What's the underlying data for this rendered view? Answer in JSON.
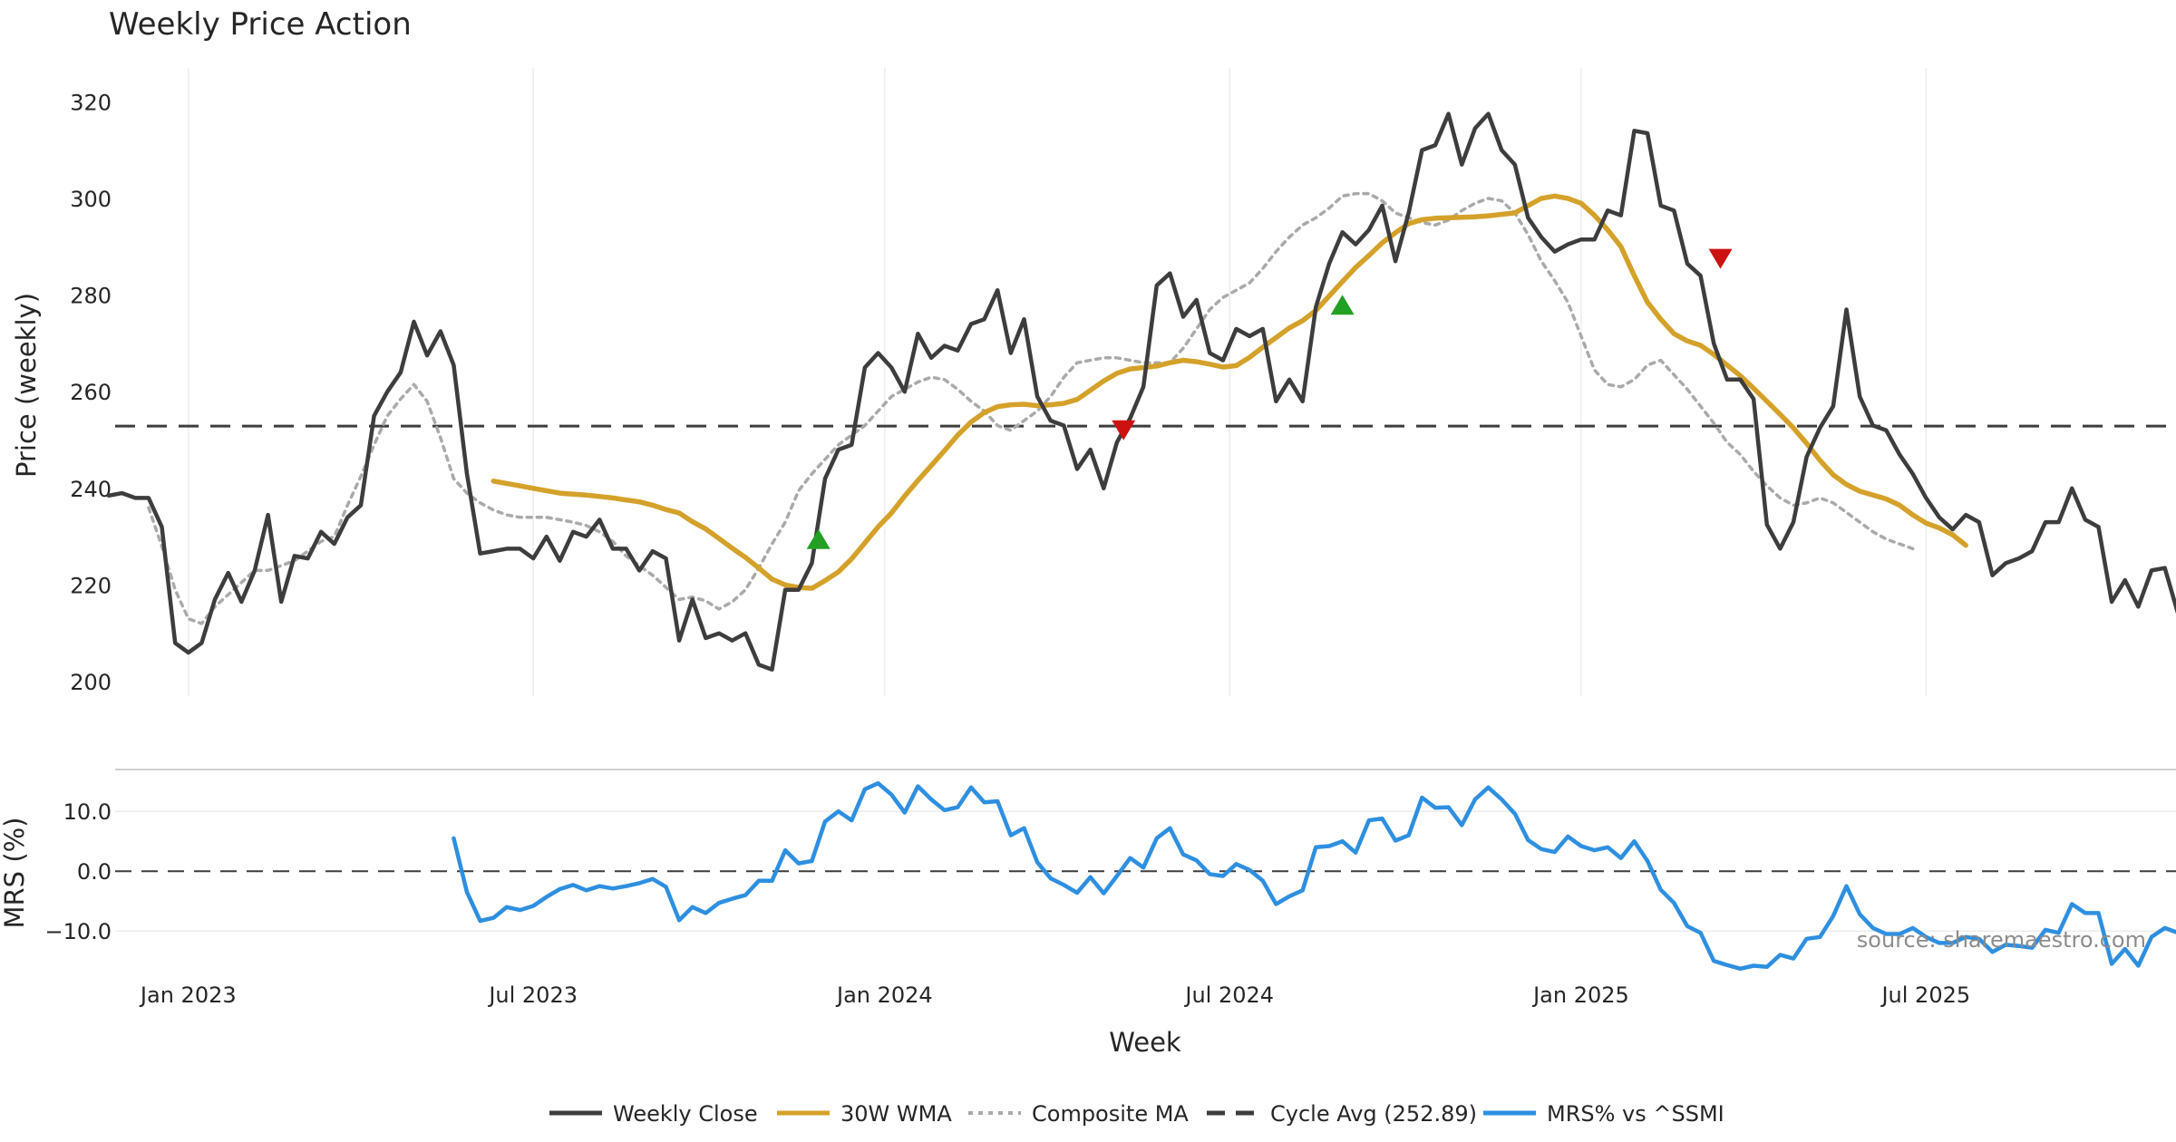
{
  "chart_data": [
    {
      "type": "line",
      "title": "Weekly Price Action",
      "xlabel": "",
      "ylabel": "Price (weekly)",
      "ylim": [
        197,
        327
      ],
      "yticks": [
        200,
        220,
        240,
        260,
        280,
        300,
        320
      ],
      "x_start_week": 0,
      "x_tick_labels": [
        "Jan 2023",
        "Jul 2023",
        "Jan 2024",
        "Jul 2024",
        "Jan 2025",
        "Jul 2025"
      ],
      "x_tick_weeks": [
        6,
        32,
        58.5,
        84.5,
        111,
        137
      ],
      "reference_line": {
        "name": "Cycle Avg (252.89)",
        "value": 252.89
      },
      "series": [
        {
          "name": "Weekly Close",
          "color": "#3d3d3d",
          "start_week": 0,
          "values": [
            238.5,
            239,
            238,
            238,
            232,
            208,
            206,
            208,
            217,
            222.5,
            216.5,
            223,
            234.5,
            216.5,
            226,
            225.5,
            231,
            228.5,
            234,
            236.5,
            255,
            260,
            264,
            274.5,
            267.5,
            272.5,
            265.5,
            243,
            226.5,
            227,
            227.5,
            227.5,
            225.5,
            230,
            225,
            231,
            230,
            233.5,
            227.5,
            227.5,
            223,
            227,
            225.5,
            208.5,
            217,
            209,
            210,
            208.5,
            210,
            203.5,
            202.5,
            219,
            219,
            224.5,
            242,
            248,
            249,
            265,
            268,
            265,
            260,
            272,
            267,
            269.5,
            268.5,
            274,
            275,
            281,
            268,
            275,
            259,
            254,
            253,
            244,
            248,
            240,
            249.5,
            254.5,
            261,
            282,
            284.5,
            275.5,
            279,
            268,
            266.5,
            273,
            271.5,
            273,
            258,
            262.5,
            258,
            277.5,
            286.5,
            293,
            290.5,
            293.5,
            298.5,
            287,
            297,
            310,
            311,
            317.5,
            307,
            314.5,
            317.5,
            310,
            307,
            296,
            292,
            289,
            290.5,
            291.5,
            291.5,
            297.5,
            296.5,
            314,
            313.5,
            298.5,
            297.5,
            286.5,
            284,
            270,
            262.5,
            262.5,
            258.5,
            232.5,
            227.5,
            233,
            246.5,
            252.5,
            257,
            277,
            259,
            253,
            252,
            247,
            243,
            238,
            234,
            231.5,
            234.5,
            233,
            222,
            224.5,
            225.5,
            227,
            233,
            233,
            240,
            233.5,
            232,
            216.5,
            221,
            215.5,
            223,
            223.5,
            214
          ]
        },
        {
          "name": "30W WMA",
          "color": "#d4a12a",
          "start_week": 29,
          "values": [
            241.5,
            241,
            240.5,
            240,
            239.5,
            239,
            238.8,
            238.6,
            238.3,
            238,
            237.6,
            237.2,
            236.5,
            235.6,
            234.9,
            233.1,
            231.6,
            229.6,
            227.6,
            225.7,
            223.5,
            221.2,
            220,
            219.5,
            219.3,
            220.9,
            222.7,
            225.4,
            228.7,
            232,
            234.9,
            238.4,
            241.6,
            244.7,
            247.8,
            251,
            253.7,
            255.7,
            256.9,
            257.3,
            257.4,
            257.1,
            257.3,
            257.6,
            258.4,
            260.3,
            262.2,
            263.8,
            264.7,
            265,
            265.3,
            266,
            266.5,
            266.2,
            265.7,
            265.1,
            265.4,
            267.1,
            269.2,
            271.2,
            273.2,
            274.7,
            276.8,
            279.8,
            282.8,
            285.7,
            288.2,
            290.8,
            292.9,
            294.8,
            295.6,
            295.9,
            296,
            296.1,
            296.2,
            296.4,
            296.7,
            297,
            298.5,
            300,
            300.5,
            300,
            299,
            296.5,
            293.5,
            290,
            284,
            278.5,
            275,
            272,
            270.5,
            269.6,
            267.7,
            265.5,
            263.3,
            260.7,
            258,
            255.3,
            252.5,
            249.3,
            245.8,
            242.8,
            240.8,
            239.4,
            238.6,
            237.8,
            236.5,
            234.5,
            232.8,
            231.8,
            230.4,
            228.2
          ]
        },
        {
          "name": "Composite MA",
          "color": "#aaaaaa",
          "start_week": 3,
          "values": [
            236,
            228,
            219,
            213,
            212,
            215.5,
            218,
            220.5,
            223,
            223,
            224,
            225,
            227,
            229,
            230,
            236.5,
            242.5,
            249,
            255,
            258.5,
            261.5,
            258,
            250.5,
            242,
            239,
            237,
            235.5,
            234.5,
            234,
            234,
            234,
            233.5,
            233,
            232.3,
            231,
            229,
            226,
            224,
            222,
            219.5,
            217,
            217.5,
            216.7,
            215,
            216.5,
            219,
            223.5,
            228.5,
            233,
            239.5,
            243,
            246,
            249,
            251,
            253,
            256,
            259,
            260.5,
            262,
            263,
            262.5,
            260.5,
            258,
            256,
            253,
            252,
            254,
            256,
            259,
            263,
            266,
            266.5,
            267,
            267,
            266.5,
            266,
            266,
            266,
            269,
            273,
            277,
            279.5,
            281,
            282.5,
            285.5,
            289,
            292,
            294.5,
            296,
            298,
            300.5,
            301,
            301,
            299.5,
            297,
            296,
            295,
            294.5,
            295.5,
            297.5,
            299,
            300,
            299.5,
            297,
            292.5,
            287,
            283,
            278.5,
            271.5,
            264.5,
            261.5,
            261,
            262.5,
            265.5,
            266.5,
            263.5,
            260.5,
            257,
            253.5,
            249.5,
            247,
            243.5,
            240.5,
            238,
            236.5,
            237,
            238,
            237,
            235,
            233,
            231,
            229.5,
            228.5,
            227.5
          ]
        }
      ],
      "markers": [
        {
          "type": "buy",
          "color": "#22a022",
          "week": 53.5,
          "value": 229.5
        },
        {
          "type": "sell",
          "color": "#cc1111",
          "week": 76.5,
          "value": 252
        },
        {
          "type": "buy",
          "color": "#22a022",
          "week": 93,
          "value": 278
        },
        {
          "type": "sell",
          "color": "#cc1111",
          "week": 121.5,
          "value": 287.5
        }
      ]
    },
    {
      "type": "line",
      "title": "",
      "xlabel": "Week",
      "ylabel": "MRS (%)",
      "ylim": [
        -18,
        17
      ],
      "yticks": [
        10,
        0,
        -10
      ],
      "ytick_labels": [
        "10.0",
        "0.0",
        "−10.0"
      ],
      "x_tick_labels": [
        "Jan 2023",
        "Jul 2023",
        "Jan 2024",
        "Jul 2024",
        "Jan 2025",
        "Jul 2025"
      ],
      "x_tick_weeks": [
        6,
        32,
        58.5,
        84.5,
        111,
        137
      ],
      "reference_line": {
        "value": 0
      },
      "series": [
        {
          "name": "MRS% vs ^SSMI",
          "color": "#2e8fe0",
          "start_week": 26,
          "values": [
            5.5,
            -3.5,
            -8.3,
            -7.8,
            -6,
            -6.5,
            -5.8,
            -4.3,
            -3,
            -2.3,
            -3.2,
            -2.5,
            -2.9,
            -2.5,
            -2,
            -1.3,
            -2.6,
            -8.2,
            -6,
            -7,
            -5.3,
            -4.6,
            -4,
            -1.6,
            -1.6,
            3.5,
            1.3,
            1.7,
            8.3,
            10,
            8.5,
            13.7,
            14.7,
            12.8,
            9.8,
            14.2,
            12,
            10.2,
            10.7,
            14,
            11.5,
            11.7,
            6,
            7.2,
            1.5,
            -1.2,
            -2.3,
            -3.6,
            -1,
            -3.7,
            -0.8,
            2.2,
            0.6,
            5.5,
            7.2,
            2.8,
            1.8,
            -0.5,
            -0.8,
            1.2,
            0.2,
            -1.6,
            -5.5,
            -4.2,
            -3.2,
            4,
            4.2,
            5,
            3.1,
            8.5,
            8.8,
            5.1,
            6,
            12.3,
            10.6,
            10.7,
            7.7,
            12,
            14,
            12,
            9.6,
            5.2,
            3.7,
            3.2,
            5.8,
            4.2,
            3.5,
            4,
            2.2,
            5,
            1.7,
            -3.1,
            -5.3,
            -9.2,
            -10.3,
            -15,
            -15.7,
            -16.3,
            -15.8,
            -16,
            -14,
            -14.6,
            -11.3,
            -11,
            -7.5,
            -2.5,
            -7.2,
            -9.5,
            -10.5,
            -10.5,
            -9.5,
            -11,
            -12,
            -12,
            -11,
            -11.3,
            -13.5,
            -12.3,
            -12.5,
            -12.8,
            -9.8,
            -10.3,
            -5.5,
            -7,
            -7,
            -15.5,
            -13,
            -15.8,
            -11,
            -9.5,
            -10.3
          ]
        }
      ]
    }
  ],
  "legend": [
    {
      "label": "Weekly Close",
      "style": "solid",
      "color": "#3d3d3d"
    },
    {
      "label": "30W WMA",
      "style": "solid",
      "color": "#d4a12a"
    },
    {
      "label": "Composite MA",
      "style": "dotted",
      "color": "#aaaaaa"
    },
    {
      "label": "Cycle Avg (252.89)",
      "style": "dashed",
      "color": "#3d3d3d"
    },
    {
      "label": "MRS% vs ^SSMI",
      "style": "solid",
      "color": "#2e8fe0"
    }
  ],
  "source_text": "source: sharemaestro.com"
}
